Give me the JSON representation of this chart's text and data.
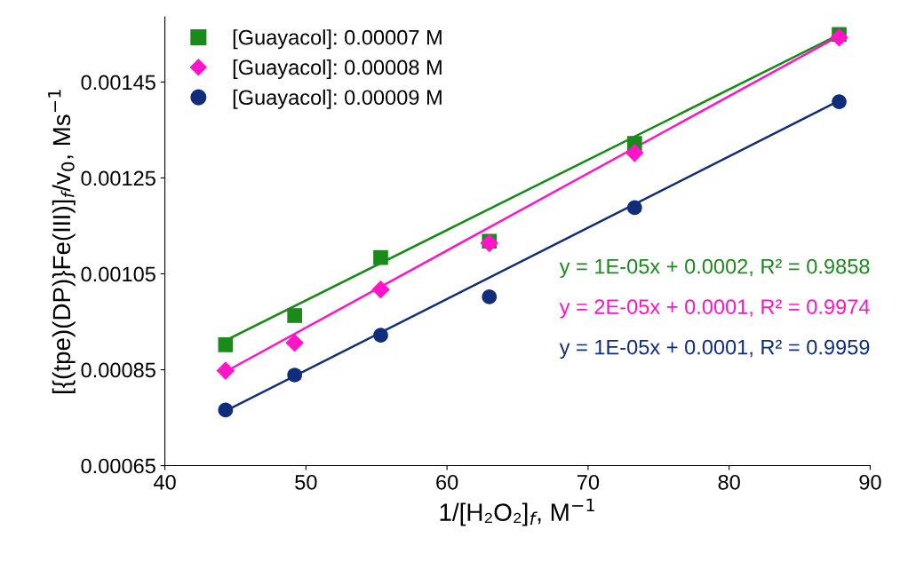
{
  "chart_data": {
    "type": "scatter",
    "xlabel": "1/[H₂O₂]$_{f}$, M$^{−1}$",
    "ylabel": "[{(tpe)(DP)}Fe(III)]$_{f}$/v$_{0}$, Ms$^{−1}$",
    "xlim": [
      40,
      90
    ],
    "xticks": [
      40,
      50,
      60,
      70,
      80,
      90
    ],
    "ylim": [
      0.00065,
      0.001586
    ],
    "yticks": [
      {
        "value": 0.00065,
        "label": "0.00065"
      },
      {
        "value": 0.00085,
        "label": "0.00085"
      },
      {
        "value": 0.00105,
        "label": "0.00105"
      },
      {
        "value": 0.00125,
        "label": "0.00125"
      },
      {
        "value": 0.00145,
        "label": "0.00145"
      }
    ],
    "grid": false,
    "legend": "top left",
    "series": [
      {
        "name": "[Guayacol]: 0.00007 M",
        "marker": "square",
        "color": "#1a8a1a",
        "x": [
          44.3,
          49.2,
          55.3,
          63.0,
          73.3,
          87.8
        ],
        "values": [
          0.000902,
          0.000963,
          0.001084,
          0.001118,
          0.001322,
          0.001549
        ]
      },
      {
        "name": "[Guayacol]: 0.00008 M",
        "marker": "diamond",
        "color": "#ff14c8",
        "x": [
          44.3,
          49.2,
          55.3,
          63.0,
          73.3,
          87.8
        ],
        "values": [
          0.000848,
          0.000906,
          0.001017,
          0.001114,
          0.001302,
          0.001543
        ]
      },
      {
        "name": "[Guayacol]: 0.00009 M",
        "marker": "circle",
        "color": "#0f2d7a",
        "x": [
          44.3,
          49.2,
          55.3,
          63.0,
          73.3,
          87.8
        ],
        "values": [
          0.000766,
          0.000839,
          0.000922,
          0.001002,
          0.001188,
          0.001409
        ]
      },
      {
        "type": "line",
        "marker": "none",
        "color": "#1a8a1a",
        "x": [
          44.3,
          87.8
        ],
        "values": [
          0.000911,
          0.001549
        ]
      },
      {
        "type": "line",
        "marker": "none",
        "color": "#ff14c8",
        "x": [
          44.3,
          87.8
        ],
        "values": [
          0.000846,
          0.001546
        ]
      },
      {
        "type": "line",
        "marker": "none",
        "color": "#0f2d7a",
        "x": [
          44.3,
          87.8
        ],
        "values": [
          0.000764,
          0.001411
        ]
      }
    ],
    "annotations": [
      "y = 1E-05x + 0.0002, R² = 0.9858",
      "y = 2E-05x + 0.0001, R² = 0.9974",
      "y = 1E-05x + 0.0001, R² = 0.9959"
    ]
  }
}
